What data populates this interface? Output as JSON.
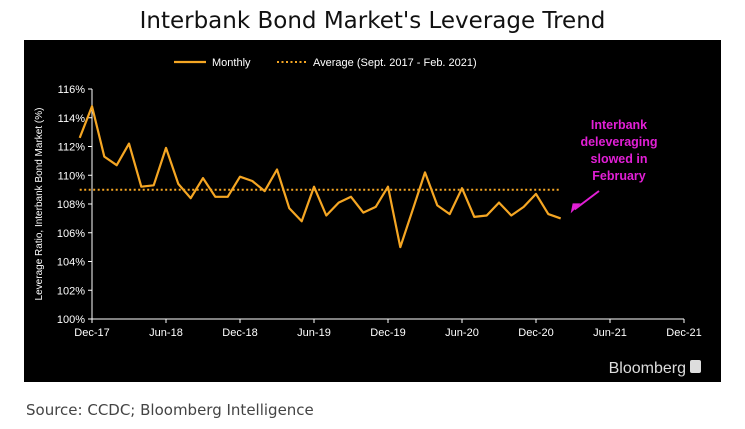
{
  "page": {
    "title": "Interbank Bond Market's Leverage Trend",
    "source": "Source: CCDC; Bloomberg Intelligence"
  },
  "chart_data": {
    "type": "line",
    "ylabel": "Leverage Ratio, Interbank Bond Market (%)",
    "xlabel": "",
    "ylim": [
      100,
      116
    ],
    "y_ticks": [
      "100%",
      "102%",
      "104%",
      "106%",
      "108%",
      "110%",
      "112%",
      "114%",
      "116%"
    ],
    "x_ticks": [
      "Dec-17",
      "Jun-18",
      "Dec-18",
      "Jun-19",
      "Dec-19",
      "Jun-20",
      "Dec-20",
      "Jun-21",
      "Dec-21"
    ],
    "grid": false,
    "legend_position": "top",
    "series": [
      {
        "name": "Monthly",
        "color": "#f5a623",
        "style": "solid",
        "x": [
          "2017-11",
          "2017-12",
          "2018-01",
          "2018-02",
          "2018-03",
          "2018-04",
          "2018-05",
          "2018-06",
          "2018-07",
          "2018-08",
          "2018-09",
          "2018-10",
          "2018-11",
          "2018-12",
          "2019-01",
          "2019-02",
          "2019-03",
          "2019-04",
          "2019-05",
          "2019-06",
          "2019-07",
          "2019-08",
          "2019-09",
          "2019-10",
          "2019-11",
          "2019-12",
          "2020-01",
          "2020-02",
          "2020-03",
          "2020-04",
          "2020-05",
          "2020-06",
          "2020-07",
          "2020-08",
          "2020-09",
          "2020-10",
          "2020-11",
          "2020-12",
          "2021-01",
          "2021-02"
        ],
        "values": [
          112.6,
          114.8,
          111.3,
          110.7,
          112.2,
          109.2,
          109.3,
          111.9,
          109.4,
          108.4,
          109.8,
          108.5,
          108.5,
          109.9,
          109.6,
          108.9,
          110.4,
          107.7,
          106.8,
          109.2,
          107.2,
          108.1,
          108.5,
          107.4,
          107.8,
          109.2,
          105.0,
          107.6,
          110.2,
          107.9,
          107.3,
          109.1,
          107.1,
          107.2,
          108.1,
          107.2,
          107.8,
          108.7,
          107.3,
          107.0
        ]
      },
      {
        "name": "Average (Sept. 2017 - Feb. 2021)",
        "color": "#f5a623",
        "style": "dotted",
        "x": [
          "2017-11",
          "2021-02"
        ],
        "values": [
          108.99,
          108.99
        ]
      }
    ],
    "annotations": [
      {
        "text": [
          "Interbank",
          "deleveraging",
          "slowed in",
          "February"
        ],
        "color": "#e21fd6",
        "points_to": {
          "x": "2021-02",
          "y": 107.0
        }
      }
    ],
    "brand": "Bloomberg"
  }
}
